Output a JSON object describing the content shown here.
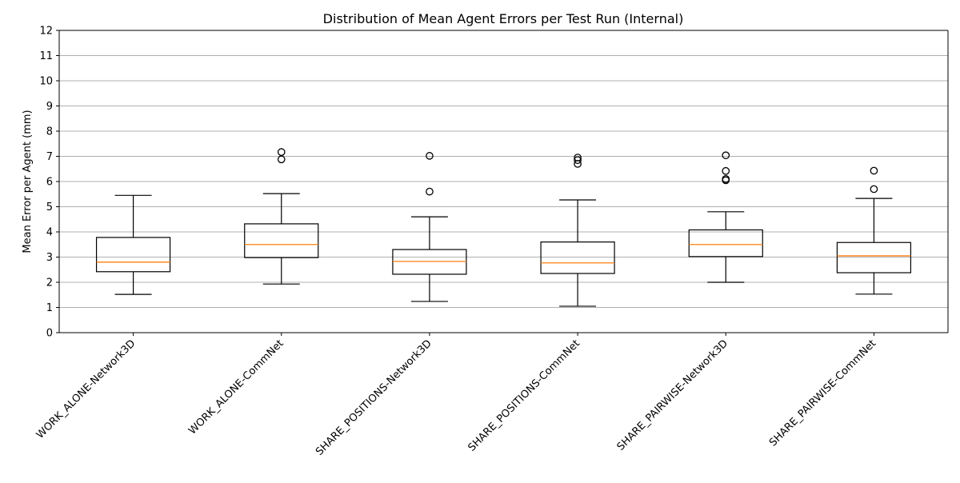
{
  "chart_data": {
    "type": "box",
    "title": "Distribution of Mean Agent Errors per Test Run (Internal)",
    "xlabel": "",
    "ylabel": "Mean Error per Agent (mm)",
    "ylim": [
      0,
      12
    ],
    "yticks": [
      0,
      1,
      2,
      3,
      4,
      5,
      6,
      7,
      8,
      9,
      10,
      11,
      12
    ],
    "grid": "y",
    "categories": [
      "WORK_ALONE-Network3D",
      "WORK_ALONE-CommNet",
      "SHARE_POSITIONS-Network3D",
      "SHARE_POSITIONS-CommNet",
      "SHARE_PAIRWISE-Network3D",
      "SHARE_PAIRWISE-CommNet"
    ],
    "boxes": [
      {
        "whisker_low": 1.52,
        "q1": 2.42,
        "median": 2.8,
        "q3": 3.78,
        "whisker_high": 5.45,
        "outliers": []
      },
      {
        "whisker_low": 1.93,
        "q1": 2.98,
        "median": 3.5,
        "q3": 4.32,
        "whisker_high": 5.52,
        "outliers": [
          6.88,
          7.17
        ]
      },
      {
        "whisker_low": 1.24,
        "q1": 2.32,
        "median": 2.83,
        "q3": 3.3,
        "whisker_high": 4.6,
        "outliers": [
          5.6,
          7.02
        ]
      },
      {
        "whisker_low": 1.05,
        "q1": 2.35,
        "median": 2.77,
        "q3": 3.6,
        "whisker_high": 5.27,
        "outliers": [
          6.7,
          6.85,
          6.95
        ]
      },
      {
        "whisker_low": 2.0,
        "q1": 3.02,
        "median": 3.5,
        "q3": 4.08,
        "whisker_high": 4.8,
        "outliers": [
          6.05,
          6.1,
          6.42,
          7.04
        ]
      },
      {
        "whisker_low": 1.53,
        "q1": 2.38,
        "median": 3.05,
        "q3": 3.58,
        "whisker_high": 5.33,
        "outliers": [
          5.7,
          6.43
        ]
      }
    ],
    "colors": {
      "box": "#000000",
      "median": "#ff7f0e",
      "grid": "#b0b0b0",
      "axis": "#000000"
    }
  }
}
